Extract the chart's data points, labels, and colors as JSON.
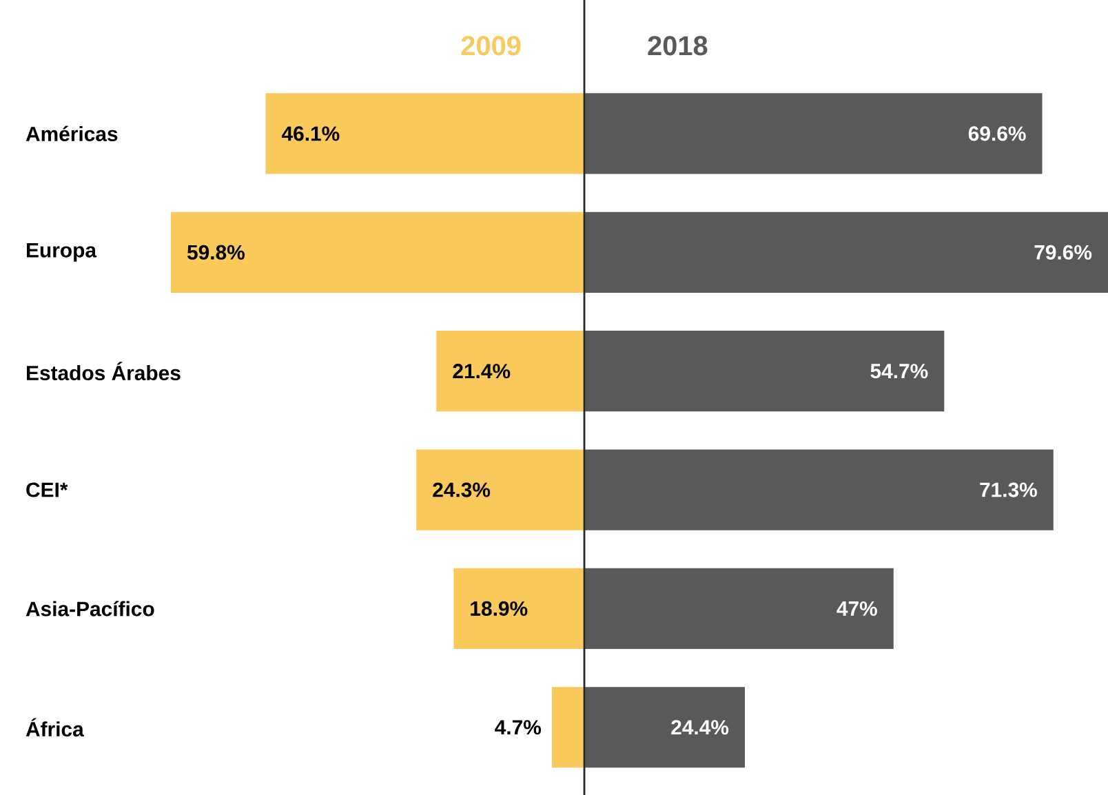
{
  "chart_data": [
    {
      "type": "bar",
      "orientation": "horizontal",
      "title": "2009",
      "tick_labels": "y",
      "xlim": [
        59.8,
        0
      ],
      "categories": [
        "Américas",
        "Europa",
        "Estados Árabes",
        "CEI*",
        "Asia-Pacífico",
        "África"
      ],
      "series": [
        {
          "color": "#fac95c",
          "values": [
            46.1,
            59.8,
            21.4,
            24.3,
            18.9,
            4.7
          ],
          "value_labels": [
            "46.1%",
            "59.8%",
            "21.4%",
            "24.3%",
            "18.9%",
            "4.7%"
          ]
        }
      ]
    },
    {
      "type": "bar",
      "orientation": "horizontal",
      "title": "2018",
      "tick_labels": false,
      "xlim": [
        0,
        79.6
      ],
      "categories": [
        null,
        null,
        null,
        null,
        null,
        null
      ],
      "series": [
        {
          "color": "#5a595a",
          "values": [
            69.6,
            79.6,
            54.7,
            71.3,
            47,
            24.4
          ],
          "value_labels": [
            "69.6%",
            "79.6%",
            "54.7%",
            "71.3%",
            "47%",
            "24.4%"
          ]
        }
      ]
    }
  ]
}
